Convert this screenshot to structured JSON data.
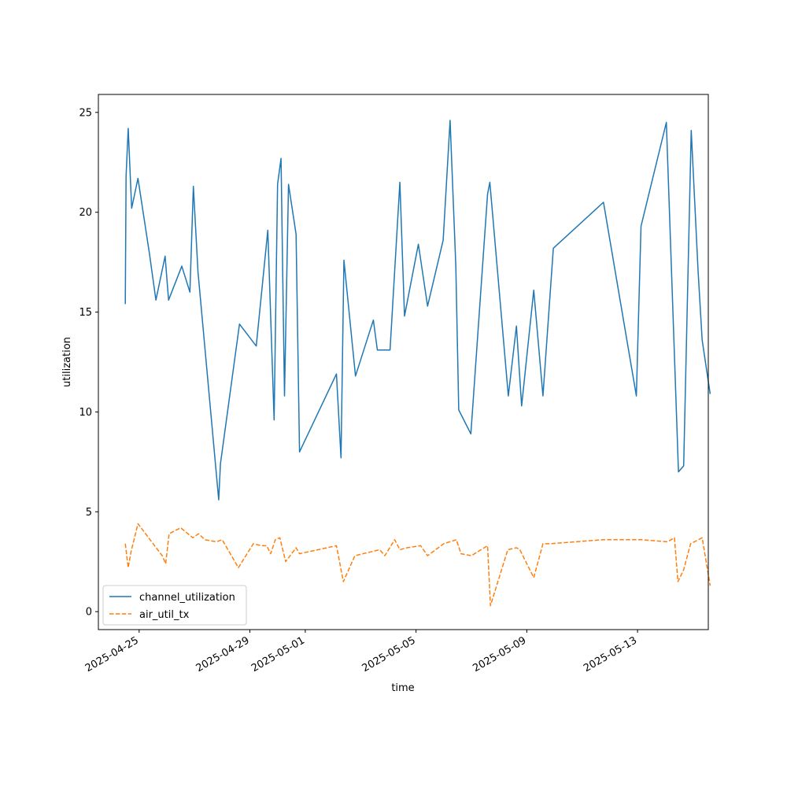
{
  "chart_data": {
    "type": "line",
    "title": "",
    "xlabel": "time",
    "ylabel": "utilization",
    "x_tick_labels": [
      "2025-04-25",
      "2025-04-29",
      "2025-05-01",
      "2025-05-05",
      "2025-05-09",
      "2025-05-13"
    ],
    "x_tick_dates": [
      "2025-04-25",
      "2025-04-29",
      "2025-05-01",
      "2025-05-05",
      "2025-05-09",
      "2025-05-13"
    ],
    "y_tick_labels": [
      "0",
      "5",
      "10",
      "15",
      "20",
      "25"
    ],
    "y_tick_values": [
      0,
      5,
      10,
      15,
      20,
      25
    ],
    "xlim": [
      "2025-04-23T12:40",
      "2025-05-15T13:20"
    ],
    "ylim": [
      -0.9,
      25.9
    ],
    "grid": false,
    "legend_position": "lower-left",
    "colors": {
      "channel_utilization": "#1f77b4",
      "air_util_tx": "#ff7f0e"
    },
    "series": [
      {
        "name": "channel_utilization",
        "style": "solid",
        "points": [
          [
            "2025-04-24T12:00",
            15.4
          ],
          [
            "2025-04-24T12:40",
            21.8
          ],
          [
            "2025-04-24T14:30",
            24.2
          ],
          [
            "2025-04-24T17:30",
            20.2
          ],
          [
            "2025-04-24T23:00",
            21.7
          ],
          [
            "2025-04-25T09:00",
            17.9
          ],
          [
            "2025-04-25T14:30",
            15.6
          ],
          [
            "2025-04-25T22:30",
            17.8
          ],
          [
            "2025-04-26T01:30",
            15.6
          ],
          [
            "2025-04-26T13:00",
            17.3
          ],
          [
            "2025-04-26T20:00",
            16.0
          ],
          [
            "2025-04-26T23:00",
            21.3
          ],
          [
            "2025-04-27T03:00",
            17.0
          ],
          [
            "2025-04-27T21:00",
            5.6
          ],
          [
            "2025-04-27T22:30",
            7.4
          ],
          [
            "2025-04-28T15:00",
            14.4
          ],
          [
            "2025-04-29T05:30",
            13.3
          ],
          [
            "2025-04-29T15:30",
            19.1
          ],
          [
            "2025-04-29T21:00",
            9.6
          ],
          [
            "2025-04-30T00:00",
            21.4
          ],
          [
            "2025-04-30T03:00",
            22.7
          ],
          [
            "2025-04-30T06:00",
            10.8
          ],
          [
            "2025-04-30T09:30",
            21.4
          ],
          [
            "2025-04-30T16:00",
            18.9
          ],
          [
            "2025-04-30T19:00",
            8.0
          ],
          [
            "2025-05-02T03:00",
            11.9
          ],
          [
            "2025-05-02T07:00",
            7.7
          ],
          [
            "2025-05-02T09:30",
            17.6
          ],
          [
            "2025-05-02T19:30",
            11.8
          ],
          [
            "2025-05-03T11:00",
            14.6
          ],
          [
            "2025-05-03T14:30",
            13.1
          ],
          [
            "2025-05-04T01:30",
            13.1
          ],
          [
            "2025-05-04T10:00",
            21.5
          ],
          [
            "2025-05-04T14:00",
            14.8
          ],
          [
            "2025-05-05T02:00",
            18.4
          ],
          [
            "2025-05-05T10:00",
            15.3
          ],
          [
            "2025-05-05T23:30",
            18.6
          ],
          [
            "2025-05-06T05:30",
            24.6
          ],
          [
            "2025-05-06T10:30",
            17.3
          ],
          [
            "2025-05-06T13:00",
            10.1
          ],
          [
            "2025-05-06T23:30",
            8.9
          ],
          [
            "2025-05-07T14:00",
            20.9
          ],
          [
            "2025-05-07T16:00",
            21.5
          ],
          [
            "2025-05-08T08:00",
            10.8
          ],
          [
            "2025-05-08T15:00",
            14.3
          ],
          [
            "2025-05-08T19:30",
            10.3
          ],
          [
            "2025-05-09T06:00",
            16.1
          ],
          [
            "2025-05-09T14:00",
            10.8
          ],
          [
            "2025-05-09T23:00",
            18.2
          ],
          [
            "2025-05-11T18:30",
            20.5
          ],
          [
            "2025-05-12T23:00",
            10.8
          ],
          [
            "2025-05-13T03:00",
            19.3
          ],
          [
            "2025-05-14T01:00",
            24.5
          ],
          [
            "2025-05-14T11:30",
            7.0
          ],
          [
            "2025-05-14T16:00",
            7.3
          ],
          [
            "2025-05-14T22:30",
            24.1
          ],
          [
            "2025-05-15T04:30",
            17.0
          ],
          [
            "2025-05-15T08:00",
            13.6
          ],
          [
            "2025-05-15T15:00",
            10.9
          ]
        ]
      },
      {
        "name": "air_util_tx",
        "style": "dashed",
        "points": [
          [
            "2025-04-24T12:00",
            3.4
          ],
          [
            "2025-04-24T14:30",
            2.2
          ],
          [
            "2025-04-24T17:00",
            3.0
          ],
          [
            "2025-04-24T23:00",
            4.4
          ],
          [
            "2025-04-25T20:00",
            2.8
          ],
          [
            "2025-04-25T23:00",
            2.4
          ],
          [
            "2025-04-26T02:00",
            3.9
          ],
          [
            "2025-04-26T12:00",
            4.2
          ],
          [
            "2025-04-26T22:30",
            3.7
          ],
          [
            "2025-04-27T03:30",
            3.9
          ],
          [
            "2025-04-27T09:00",
            3.6
          ],
          [
            "2025-04-27T19:00",
            3.5
          ],
          [
            "2025-04-28T00:00",
            3.6
          ],
          [
            "2025-04-28T14:00",
            2.2
          ],
          [
            "2025-04-29T03:00",
            3.4
          ],
          [
            "2025-04-29T10:00",
            3.3
          ],
          [
            "2025-04-29T14:30",
            3.3
          ],
          [
            "2025-04-29T18:00",
            2.9
          ],
          [
            "2025-04-29T22:00",
            3.6
          ],
          [
            "2025-04-30T02:00",
            3.7
          ],
          [
            "2025-04-30T07:00",
            2.5
          ],
          [
            "2025-04-30T16:00",
            3.2
          ],
          [
            "2025-04-30T19:00",
            2.9
          ],
          [
            "2025-05-02T03:00",
            3.3
          ],
          [
            "2025-05-02T09:00",
            1.5
          ],
          [
            "2025-05-02T19:00",
            2.8
          ],
          [
            "2025-05-03T16:30",
            3.1
          ],
          [
            "2025-05-03T21:00",
            2.8
          ],
          [
            "2025-05-04T05:30",
            3.6
          ],
          [
            "2025-05-04T10:00",
            3.1
          ],
          [
            "2025-05-04T16:00",
            3.2
          ],
          [
            "2025-05-05T04:00",
            3.3
          ],
          [
            "2025-05-05T10:00",
            2.8
          ],
          [
            "2025-05-06T00:00",
            3.4
          ],
          [
            "2025-05-06T11:00",
            3.6
          ],
          [
            "2025-05-06T15:00",
            2.9
          ],
          [
            "2025-05-07T00:00",
            2.8
          ],
          [
            "2025-05-07T14:00",
            3.3
          ],
          [
            "2025-05-07T16:30",
            0.3
          ],
          [
            "2025-05-08T07:30",
            3.1
          ],
          [
            "2025-05-08T15:00",
            3.2
          ],
          [
            "2025-05-08T18:00",
            3.1
          ],
          [
            "2025-05-09T06:00",
            1.7
          ],
          [
            "2025-05-09T14:00",
            3.4
          ],
          [
            "2025-05-09T20:00",
            3.4
          ],
          [
            "2025-05-11T18:00",
            3.6
          ],
          [
            "2025-05-13T03:00",
            3.6
          ],
          [
            "2025-05-14T02:00",
            3.5
          ],
          [
            "2025-05-14T08:00",
            3.7
          ],
          [
            "2025-05-14T11:00",
            1.5
          ],
          [
            "2025-05-14T16:00",
            2.1
          ],
          [
            "2025-05-14T22:00",
            3.4
          ],
          [
            "2025-05-15T08:00",
            3.7
          ],
          [
            "2025-05-15T15:00",
            1.3
          ]
        ]
      }
    ]
  }
}
